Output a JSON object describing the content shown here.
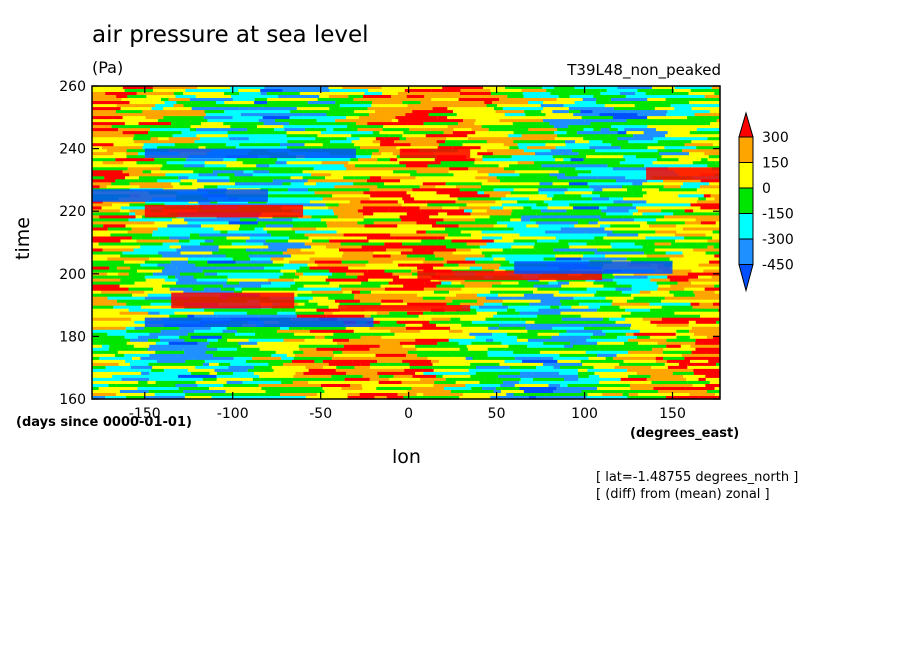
{
  "chart_data": {
    "type": "heatmap",
    "title": "air pressure at sea level",
    "units": "(Pa)",
    "run_label": "T39L48_non_peaked",
    "xlabel": "lon",
    "xunits": "(degrees_east)",
    "ylabel": "time",
    "yunits": "(days since 0000-01-01)",
    "xlim": [
      -180,
      177
    ],
    "ylim": [
      160,
      260
    ],
    "x_ticks": [
      "-150",
      "-100",
      "-50",
      "0",
      "50",
      "100",
      "150"
    ],
    "x_tick_values": [
      -150,
      -100,
      -50,
      0,
      50,
      100,
      150
    ],
    "y_ticks": [
      "160",
      "180",
      "200",
      "220",
      "240",
      "260"
    ],
    "y_tick_values": [
      160,
      180,
      200,
      220,
      240,
      260
    ],
    "notes": [
      "[ lat=-1.48755 degrees_north ]",
      "[ (diff) from (mean) zonal ]"
    ],
    "colorbar": {
      "levels": [
        "300",
        "150",
        "0",
        "-150",
        "-300",
        "-450"
      ],
      "bins": [
        {
          "range": "> 300",
          "color": "#ff0000"
        },
        {
          "range": "150 to 300",
          "color": "#ffa500"
        },
        {
          "range": "0 to 150",
          "color": "#ffff00"
        },
        {
          "range": "-150 to 0",
          "color": "#00e600"
        },
        {
          "range": "-300 to -150",
          "color": "#00ffff"
        },
        {
          "range": "-450 to -300",
          "color": "#1e90ff"
        },
        {
          "range": "< -450",
          "color": "#0050ff"
        }
      ]
    },
    "features": [
      {
        "desc": "positive anomaly band",
        "lon": [
          -135,
          -65
        ],
        "time": [
          189,
          194
        ],
        "value": 300
      },
      {
        "desc": "positive anomaly band",
        "lon": [
          -40,
          35
        ],
        "time": [
          188,
          190
        ],
        "value": 300
      },
      {
        "desc": "positive anomaly band",
        "lon": [
          5,
          110
        ],
        "time": [
          198,
          201
        ],
        "value": 300
      },
      {
        "desc": "positive anomaly band",
        "lon": [
          -5,
          35
        ],
        "time": [
          237,
          240
        ],
        "value": 300
      },
      {
        "desc": "positive anomaly band",
        "lon": [
          -150,
          -60
        ],
        "time": [
          218,
          222
        ],
        "value": 300
      },
      {
        "desc": "positive anomaly band",
        "lon": [
          135,
          177
        ],
        "time": [
          230,
          234
        ],
        "value": 300
      },
      {
        "desc": "negative anomaly band",
        "lon": [
          -150,
          -20
        ],
        "time": [
          183,
          186
        ],
        "value": -450
      },
      {
        "desc": "negative anomaly band",
        "lon": [
          -180,
          -80
        ],
        "time": [
          223,
          227
        ],
        "value": -450
      },
      {
        "desc": "negative anomaly band",
        "lon": [
          -150,
          -30
        ],
        "time": [
          237,
          240
        ],
        "value": -450
      },
      {
        "desc": "negative anomaly band",
        "lon": [
          60,
          150
        ],
        "time": [
          200,
          204
        ],
        "value": -450
      }
    ]
  }
}
